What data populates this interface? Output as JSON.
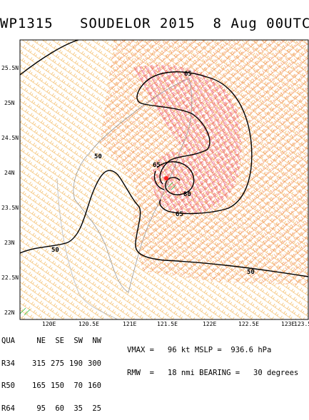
{
  "title": "WP1315   SOUDELOR 2015  8 Aug 00UTC",
  "map": {
    "y_ticks": [
      "25.5N",
      "25N",
      "24.5N",
      "24N",
      "23.5N",
      "23N",
      "22.5N",
      "22N"
    ],
    "x_ticks": [
      "120E",
      "120.5E",
      "121E",
      "121.5E",
      "122E",
      "122.5E",
      "123E",
      "123.5"
    ],
    "contour_labels": [
      "65",
      "50",
      "65",
      "80",
      "65",
      "50",
      "50"
    ],
    "colors": {
      "contour": "#000000",
      "barb_outer": "#f0a83a",
      "barb_mid": "#f07838",
      "barb_core": "#e83a6a",
      "center": "#ff2020",
      "coast": "#999999",
      "green": "#30c040"
    }
  },
  "table": {
    "headers": [
      "QUA",
      "NE",
      "SE",
      "SW",
      "NW"
    ],
    "rows": [
      [
        "R34",
        "315",
        "275",
        "190",
        "300"
      ],
      [
        "R50",
        "165",
        "150",
        "70",
        "160"
      ],
      [
        "R64",
        "95",
        "60",
        "35",
        "25"
      ]
    ]
  },
  "stats": {
    "line1": "VMAX =   96 kt MSLP =  936.6 hPa",
    "line2": "RMW  =   18 nmi BEARING =   30 degrees"
  }
}
